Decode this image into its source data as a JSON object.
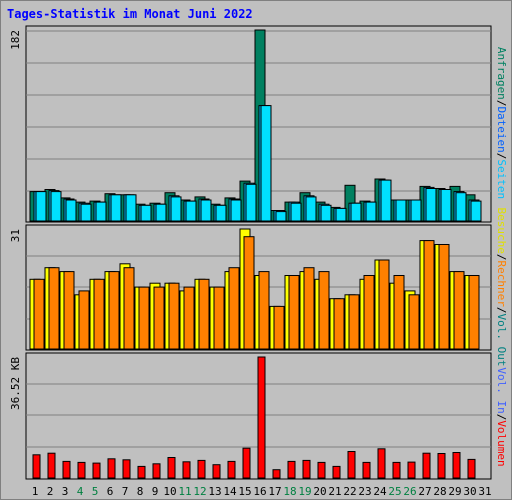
{
  "title": "Tages-Statistik im Monat Juni 2022",
  "colors": {
    "background": "#c0c0c0",
    "title": "#0000ff",
    "anfragen": "#008060",
    "dateien": "#00c0ff",
    "seiten": "#00e0ff",
    "besuche": "#ffff00",
    "rechner": "#ff8000",
    "vol_out": "#008080",
    "vol_in": "#4060ff",
    "volumen": "#ff0000",
    "weekday": "#000000",
    "weekend": "#008040"
  },
  "chart_data": [
    {
      "type": "bar",
      "name": "requests-files-pages",
      "ytick": "182",
      "ylim": [
        0,
        182
      ],
      "grid": true,
      "x": [
        1,
        2,
        3,
        4,
        5,
        6,
        7,
        8,
        9,
        10,
        11,
        12,
        13,
        14,
        15,
        16,
        17,
        18,
        19,
        20,
        21,
        22,
        23,
        24,
        25,
        26,
        27,
        28,
        29,
        30,
        31
      ],
      "series": [
        {
          "name": "Anfragen",
          "values": [
            28,
            30,
            22,
            18,
            19,
            26,
            25,
            16,
            17,
            27,
            20,
            23,
            16,
            22,
            38,
            182,
            10,
            18,
            27,
            18,
            13,
            34,
            19,
            40,
            20,
            20,
            33,
            31,
            33,
            25,
            0
          ]
        },
        {
          "name": "Dateien",
          "values": [
            28,
            29,
            21,
            17,
            18,
            25,
            25,
            15,
            16,
            24,
            19,
            21,
            15,
            21,
            36,
            110,
            10,
            18,
            24,
            16,
            12,
            17,
            18,
            39,
            20,
            20,
            32,
            30,
            28,
            20,
            0
          ]
        },
        {
          "name": "Seiten",
          "values": [
            28,
            28,
            20,
            16,
            18,
            25,
            25,
            15,
            16,
            23,
            19,
            20,
            15,
            20,
            35,
            110,
            9,
            17,
            23,
            15,
            12,
            17,
            18,
            39,
            20,
            20,
            31,
            30,
            27,
            19,
            0
          ]
        }
      ]
    },
    {
      "type": "bar",
      "name": "visits-sites",
      "ytick": "31",
      "ylim": [
        0,
        31
      ],
      "grid": true,
      "x": [
        1,
        2,
        3,
        4,
        5,
        6,
        7,
        8,
        9,
        10,
        11,
        12,
        13,
        14,
        15,
        16,
        17,
        18,
        19,
        20,
        21,
        22,
        23,
        24,
        25,
        26,
        27,
        28,
        29,
        30,
        31
      ],
      "series": [
        {
          "name": "Besuche",
          "values": [
            18,
            21,
            20,
            14,
            18,
            20,
            22,
            16,
            17,
            17,
            15,
            18,
            16,
            20,
            31,
            19,
            11,
            19,
            20,
            18,
            13,
            14,
            18,
            23,
            17,
            15,
            28,
            27,
            20,
            19,
            0
          ]
        },
        {
          "name": "Rechner",
          "values": [
            18,
            21,
            20,
            15,
            18,
            20,
            21,
            16,
            16,
            17,
            16,
            18,
            16,
            21,
            29,
            20,
            11,
            19,
            21,
            20,
            13,
            14,
            19,
            23,
            19,
            14,
            28,
            27,
            20,
            19,
            0
          ]
        }
      ]
    },
    {
      "type": "bar",
      "name": "volume",
      "ytick": "36.52 KB",
      "ylim": [
        0,
        36.52
      ],
      "grid": true,
      "x": [
        1,
        2,
        3,
        4,
        5,
        6,
        7,
        8,
        9,
        10,
        11,
        12,
        13,
        14,
        15,
        16,
        17,
        18,
        19,
        20,
        21,
        22,
        23,
        24,
        25,
        26,
        27,
        28,
        29,
        30,
        31
      ],
      "series": [
        {
          "name": "Volumen",
          "values": [
            7,
            7.5,
            5,
            4.7,
            4.5,
            5.8,
            5.5,
            3.5,
            4.3,
            6.2,
            4.9,
            5.3,
            4,
            5,
            9,
            36.52,
            2.5,
            5,
            5.3,
            4.7,
            3.5,
            8,
            4.7,
            8.8,
            4.7,
            4.8,
            7.5,
            7.4,
            7.7,
            5.6,
            0
          ]
        }
      ]
    }
  ],
  "legend_right": {
    "top": [
      {
        "label": "Anfragen",
        "color": "#008060"
      },
      {
        "label": "Dateien",
        "color": "#0060ff"
      },
      {
        "label": "Seiten",
        "color": "#00c0ff"
      }
    ],
    "middle": [
      {
        "label": "Besuche",
        "color": "#e0e000"
      },
      {
        "label": "Rechner",
        "color": "#ff8000"
      },
      {
        "label": "Vol. Out",
        "color": "#008080"
      }
    ],
    "bottom": [
      {
        "label": "Vol. In",
        "color": "#4060ff"
      },
      {
        "label": "Volumen",
        "color": "#ff0000"
      }
    ]
  },
  "x_ticks": [
    {
      "label": "1",
      "weekend": false
    },
    {
      "label": "2",
      "weekend": false
    },
    {
      "label": "3",
      "weekend": false
    },
    {
      "label": "4",
      "weekend": true
    },
    {
      "label": "5",
      "weekend": true
    },
    {
      "label": "6",
      "weekend": false
    },
    {
      "label": "7",
      "weekend": false
    },
    {
      "label": "8",
      "weekend": false
    },
    {
      "label": "9",
      "weekend": false
    },
    {
      "label": "10",
      "weekend": false
    },
    {
      "label": "11",
      "weekend": true
    },
    {
      "label": "12",
      "weekend": true
    },
    {
      "label": "13",
      "weekend": false
    },
    {
      "label": "14",
      "weekend": false
    },
    {
      "label": "15",
      "weekend": false
    },
    {
      "label": "16",
      "weekend": false
    },
    {
      "label": "17",
      "weekend": false
    },
    {
      "label": "18",
      "weekend": true
    },
    {
      "label": "19",
      "weekend": true
    },
    {
      "label": "20",
      "weekend": false
    },
    {
      "label": "21",
      "weekend": false
    },
    {
      "label": "22",
      "weekend": false
    },
    {
      "label": "23",
      "weekend": false
    },
    {
      "label": "24",
      "weekend": false
    },
    {
      "label": "25",
      "weekend": true
    },
    {
      "label": "26",
      "weekend": true
    },
    {
      "label": "27",
      "weekend": false
    },
    {
      "label": "28",
      "weekend": false
    },
    {
      "label": "29",
      "weekend": false
    },
    {
      "label": "30",
      "weekend": false
    },
    {
      "label": "31",
      "weekend": false
    }
  ]
}
